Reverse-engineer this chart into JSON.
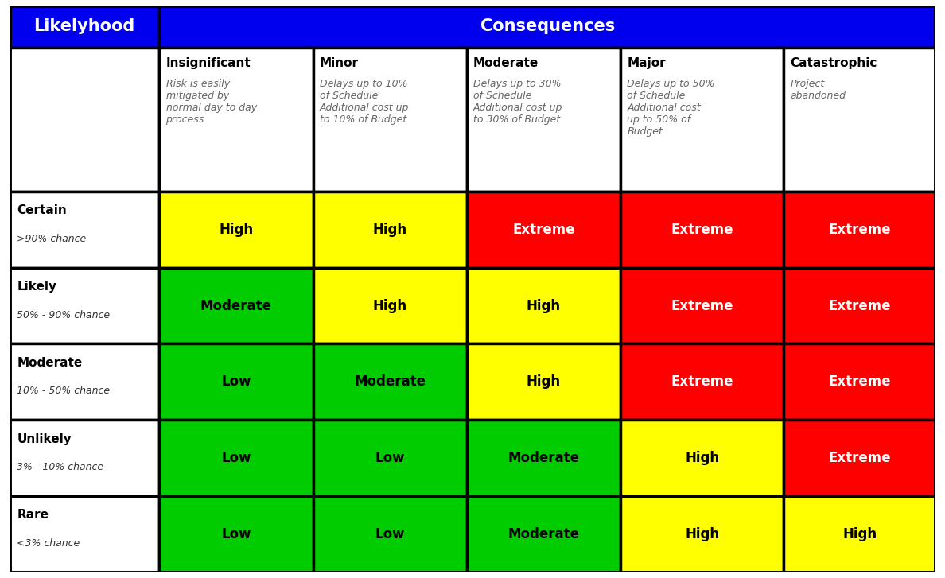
{
  "header_bg": "#0000EE",
  "header_text_color": "#FFFFFF",
  "header_fontsize": 15,
  "border_color": "#000000",
  "border_lw": 2.5,
  "likelihood_header": "Likelyhood",
  "consequences_header": "Consequences",
  "col_headers": [
    {
      "title": "Insignificant",
      "subtitle": "Risk is easily\nmitigated by\nnormal day to day\nprocess"
    },
    {
      "title": "Minor",
      "subtitle": "Delays up to 10%\nof Schedule\nAdditional cost up\nto 10% of Budget"
    },
    {
      "title": "Moderate",
      "subtitle": "Delays up to 30%\nof Schedule\nAdditional cost up\nto 30% of Budget"
    },
    {
      "title": "Major",
      "subtitle": "Delays up to 50%\nof Schedule\nAdditional cost\nup to 50% of\nBudget"
    },
    {
      "title": "Catastrophic",
      "subtitle": "Project\nabandoned"
    }
  ],
  "rows": [
    {
      "label": "Certain",
      "sublabel": ">90% chance",
      "cells": [
        "High",
        "High",
        "Extreme",
        "Extreme",
        "Extreme"
      ]
    },
    {
      "label": "Likely",
      "sublabel": "50% - 90% chance",
      "cells": [
        "Moderate",
        "High",
        "High",
        "Extreme",
        "Extreme"
      ]
    },
    {
      "label": "Moderate",
      "sublabel": "10% - 50% chance",
      "cells": [
        "Low",
        "Moderate",
        "High",
        "Extreme",
        "Extreme"
      ]
    },
    {
      "label": "Unlikely",
      "sublabel": "3% - 10% chance",
      "cells": [
        "Low",
        "Low",
        "Moderate",
        "High",
        "Extreme"
      ]
    },
    {
      "label": "Rare",
      "sublabel": "<3% chance",
      "cells": [
        "Low",
        "Low",
        "Moderate",
        "High",
        "High"
      ]
    }
  ],
  "cell_colors": {
    "Low": "#00CC00",
    "Moderate": "#00CC00",
    "High": "#FFFF00",
    "Extreme": "#FF0000"
  },
  "cell_text_colors": {
    "Low": "#000000",
    "Moderate": "#000000",
    "High": "#000000",
    "Extreme": "#FFFFFF"
  },
  "col_header_title_fontsize": 11,
  "col_header_subtitle_fontsize": 9,
  "row_label_fontsize": 11,
  "row_sublabel_fontsize": 9,
  "cell_fontsize": 12
}
